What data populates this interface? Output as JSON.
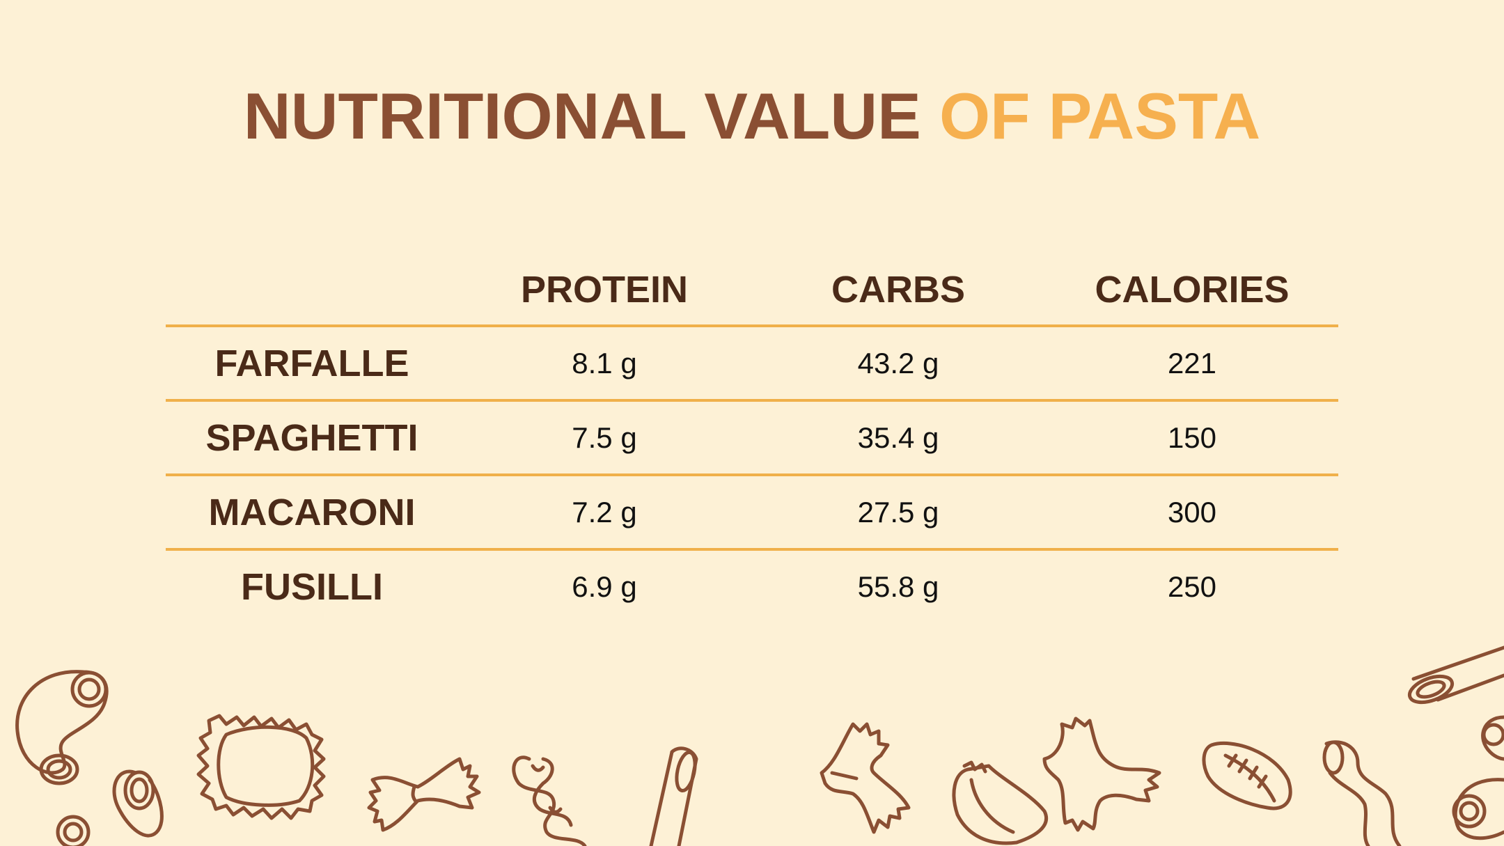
{
  "title": {
    "part1": "NUTRITIONAL VALUE ",
    "part2": "OF PASTA"
  },
  "table": {
    "headers": [
      "",
      "PROTEIN",
      "CARBS",
      "CALORIES"
    ],
    "rows": [
      {
        "name": "FARFALLE",
        "protein": "8.1 g",
        "carbs": "43.2 g",
        "calories": "221"
      },
      {
        "name": "SPAGHETTI",
        "protein": "7.5 g",
        "carbs": "35.4 g",
        "calories": "150"
      },
      {
        "name": "MACARONI",
        "protein": "7.2 g",
        "carbs": "27.5 g",
        "calories": "300"
      },
      {
        "name": "FUSILLI",
        "protein": "6.9 g",
        "carbs": "55.8 g",
        "calories": "250"
      }
    ]
  },
  "colors": {
    "background": "#fdf1d6",
    "title_dark": "#8a4f33",
    "title_accent": "#f6b04f",
    "rule": "#f0b04a",
    "text_dark": "#4a2a18"
  },
  "decoration": [
    "macaroni-icon",
    "ravioli-icon",
    "farfalle-icon",
    "fusilli-icon",
    "penne-icon",
    "tortellini-icon",
    "conchiglie-icon"
  ]
}
